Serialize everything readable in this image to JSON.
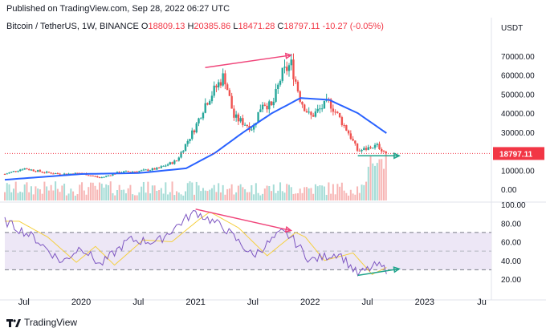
{
  "header": {
    "published": "Published on TradingView.com, Sep 28, 2022 06:27 UTC"
  },
  "legend": {
    "symbol": "Bitcoin / TetherUS, 1W, BINANCE",
    "open_label": "O",
    "open": "18809.13",
    "high_label": "H",
    "high": "20385.86",
    "low_label": "L",
    "low": "18471.28",
    "close_label": "C",
    "close": "18797.11",
    "change": "-10.27 (-0.05%)"
  },
  "price_axis": {
    "currency": "USDT",
    "ticks": [
      "70000.00",
      "60000.00",
      "50000.00",
      "40000.00",
      "30000.00",
      "20000.00",
      "10000.00",
      "0.00"
    ],
    "last_price": "18797.11"
  },
  "rsi_axis": {
    "ticks": [
      "100.00",
      "80.00",
      "60.00",
      "40.00",
      "20.00"
    ]
  },
  "time_axis": {
    "ticks": [
      "Jul",
      "2020",
      "Jul",
      "2021",
      "Jul",
      "2022",
      "Jul",
      "2023",
      "Ju"
    ]
  },
  "footer": {
    "brand": "TradingView"
  },
  "colors": {
    "up": "#26a69a",
    "down": "#ef5350",
    "ma": "#2962ff",
    "rsi": "#7e57c2",
    "rsi_ma": "#f5d03f",
    "divergence_bear": "#f0457a",
    "divergence_bull": "#1fa38b",
    "price_line": "#f23645"
  },
  "chart_data": {
    "type": "candlestick",
    "interval": "1W",
    "x_start": "2019-05",
    "x_end": "2022-09",
    "close_series_sampled": [
      [
        "2019-05",
        8000
      ],
      [
        "2019-07",
        11000
      ],
      [
        "2019-09",
        9000
      ],
      [
        "2019-11",
        8000
      ],
      [
        "2020-01",
        8500
      ],
      [
        "2020-03",
        6000
      ],
      [
        "2020-05",
        9000
      ],
      [
        "2020-07",
        9500
      ],
      [
        "2020-09",
        10800
      ],
      [
        "2020-11",
        15000
      ],
      [
        "2021-01",
        33000
      ],
      [
        "2021-02",
        45000
      ],
      [
        "2021-04",
        60000
      ],
      [
        "2021-05",
        38000
      ],
      [
        "2021-07",
        32000
      ],
      [
        "2021-08",
        46000
      ],
      [
        "2021-09",
        43000
      ],
      [
        "2021-10",
        60000
      ],
      [
        "2021-11",
        66000
      ],
      [
        "2021-12",
        47000
      ],
      [
        "2022-01",
        38000
      ],
      [
        "2022-03",
        46000
      ],
      [
        "2022-05",
        30000
      ],
      [
        "2022-06",
        20000
      ],
      [
        "2022-08",
        23000
      ],
      [
        "2022-09",
        18797
      ]
    ],
    "moving_average_sampled": [
      [
        "2019-05",
        5000
      ],
      [
        "2020-01",
        8000
      ],
      [
        "2020-07",
        8500
      ],
      [
        "2020-12",
        11000
      ],
      [
        "2021-03",
        19000
      ],
      [
        "2021-06",
        30000
      ],
      [
        "2021-09",
        40000
      ],
      [
        "2021-12",
        48000
      ],
      [
        "2022-03",
        47000
      ],
      [
        "2022-06",
        40000
      ],
      [
        "2022-09",
        29500
      ]
    ],
    "rsi_sampled": [
      [
        "2019-05",
        82
      ],
      [
        "2019-08",
        65
      ],
      [
        "2019-11",
        38
      ],
      [
        "2020-01",
        55
      ],
      [
        "2020-03",
        35
      ],
      [
        "2020-06",
        62
      ],
      [
        "2020-09",
        60
      ],
      [
        "2020-12",
        85
      ],
      [
        "2021-01",
        92
      ],
      [
        "2021-04",
        75
      ],
      [
        "2021-07",
        45
      ],
      [
        "2021-10",
        70
      ],
      [
        "2021-11",
        65
      ],
      [
        "2022-01",
        40
      ],
      [
        "2022-04",
        48
      ],
      [
        "2022-06",
        25
      ],
      [
        "2022-08",
        35
      ],
      [
        "2022-09",
        30
      ]
    ]
  }
}
